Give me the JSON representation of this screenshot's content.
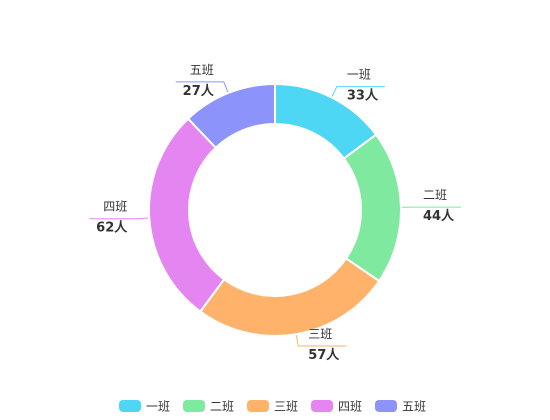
{
  "chart_data": {
    "type": "pie",
    "variant": "donut",
    "categories": [
      "一班",
      "二班",
      "三班",
      "四班",
      "五班"
    ],
    "values": [
      33,
      44,
      57,
      62,
      27
    ],
    "value_labels": [
      "33人",
      "44人",
      "57人",
      "62人",
      "27人"
    ],
    "colors": [
      "#4ed7f5",
      "#7ee99f",
      "#feb26a",
      "#e485f2",
      "#8c94fb"
    ],
    "legend": {
      "position": "bottom",
      "entries": [
        "一班",
        "二班",
        "三班",
        "四班",
        "五班"
      ]
    }
  }
}
